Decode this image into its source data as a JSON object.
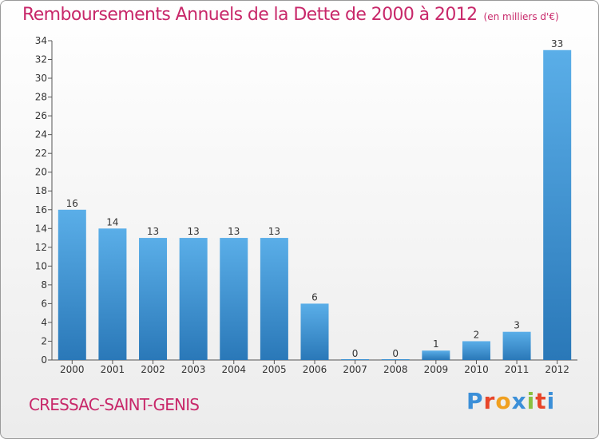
{
  "header": {
    "title": "Remboursements Annuels de la Dette de 2000 à 2012",
    "unit": "(en milliers d'€)"
  },
  "footer": {
    "commune": "CRESSAC-SAINT-GENIS",
    "logo": "Proxiti"
  },
  "colors": {
    "title": "#c8286a",
    "bar_top": "#5aaee8",
    "bar_bottom": "#2a78b8",
    "logo_letters": [
      "#3b8fd8",
      "#e8462a",
      "#f0a020",
      "#3b8fd8",
      "#8ac040",
      "#e8462a",
      "#3b8fd8"
    ]
  },
  "chart_data": {
    "type": "bar",
    "categories": [
      "2000",
      "2001",
      "2002",
      "2003",
      "2004",
      "2005",
      "2006",
      "2007",
      "2008",
      "2009",
      "2010",
      "2011",
      "2012"
    ],
    "values": [
      16,
      14,
      13,
      13,
      13,
      13,
      6,
      0,
      0,
      1,
      2,
      3,
      33
    ],
    "ylim": [
      0,
      34
    ],
    "yticks": [
      0,
      2,
      4,
      6,
      8,
      10,
      12,
      14,
      16,
      18,
      20,
      22,
      24,
      26,
      28,
      30,
      32,
      34
    ],
    "grid": false
  }
}
